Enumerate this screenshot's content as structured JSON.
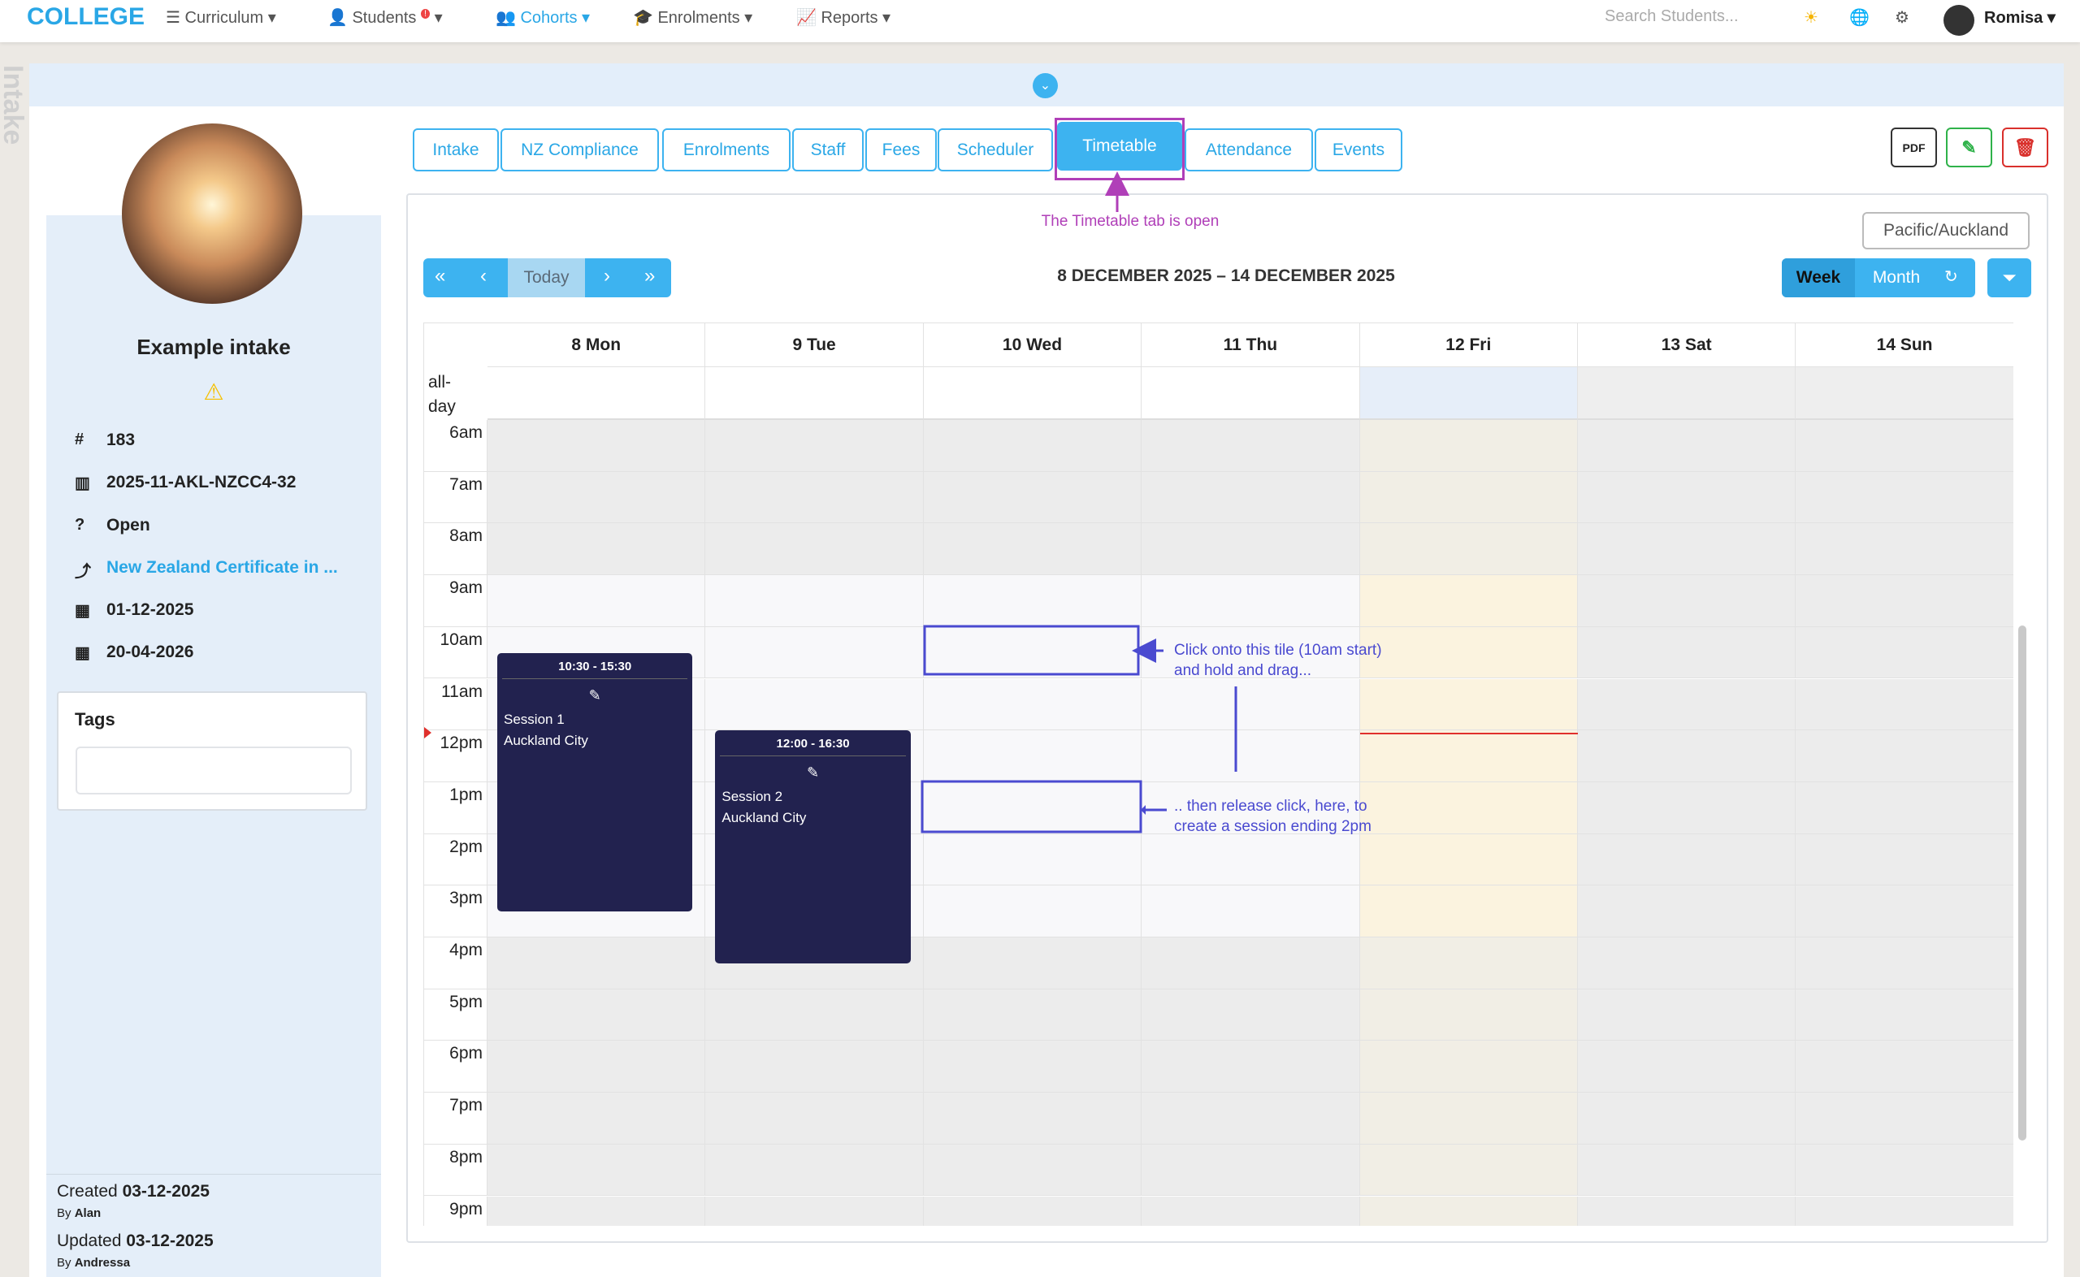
{
  "nav": {
    "logo": "COLLEGE",
    "items": [
      "Curriculum",
      "Students",
      "Cohorts",
      "Enrolments",
      "Reports"
    ],
    "badge": "!",
    "search_placeholder": "Search Students...",
    "user": "Romisa"
  },
  "side_tab": "Intake",
  "sidebar": {
    "name": "Example intake",
    "details": [
      "183",
      "2025-11-AKL-NZCC4-32",
      "Open",
      "New Zealand Certificate in ...",
      "01-12-2025",
      "20-04-2026"
    ],
    "tags_label": "Tags",
    "created": {
      "label": "Created",
      "date": "03-12-2025",
      "by_label": "By",
      "by": "Alan"
    },
    "updated": {
      "label": "Updated",
      "date": "03-12-2025",
      "by_label": "By",
      "by": "Andressa"
    }
  },
  "tabs": [
    "Intake",
    "NZ Compliance",
    "Enrolments",
    "Staff",
    "Fees",
    "Scheduler",
    "Timetable",
    "Attendance",
    "Events"
  ],
  "active_tab": 6,
  "tab_note": "The Timetable tab is open",
  "calendar": {
    "timezone": "Pacific/Auckland",
    "today": "Today",
    "range": "8 DECEMBER 2025 – 14 DECEMBER 2025",
    "views": [
      "Week",
      "Month"
    ],
    "days": [
      "8 Mon",
      "9 Tue",
      "10 Wed",
      "11 Thu",
      "12 Fri",
      "13 Sat",
      "14 Sun"
    ],
    "all_day": "all-day",
    "hours": [
      "6am",
      "7am",
      "8am",
      "9am",
      "10am",
      "11am",
      "12pm",
      "1pm",
      "2pm",
      "3pm",
      "4pm",
      "5pm",
      "6pm",
      "7pm",
      "8pm",
      "9pm"
    ],
    "events": [
      {
        "time": "10:30 - 15:30",
        "title": "Session 1",
        "location": "Auckland City"
      },
      {
        "time": "12:00 - 16:30",
        "title": "Session 2",
        "location": "Auckland City"
      }
    ],
    "notes": [
      [
        "Click onto this tile (10am start)",
        "and hold and drag..."
      ],
      [
        ".. then release click, here, to",
        "create a session ending 2pm"
      ]
    ]
  }
}
